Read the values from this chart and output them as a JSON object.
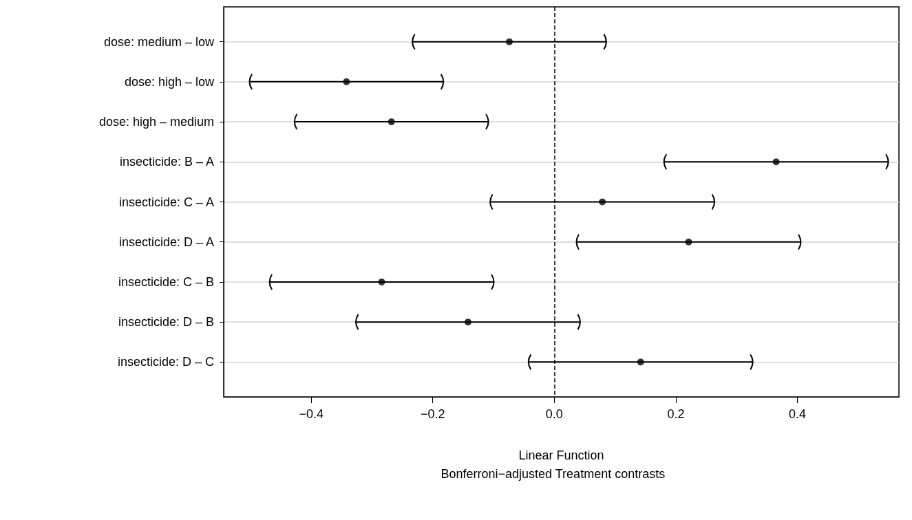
{
  "chart_data": {
    "type": "scatter",
    "orientation": "horizontal",
    "xlabel": "Linear Function",
    "annotations": [
      "Bonferroni−adjusted Treatment contrasts"
    ],
    "categories": [
      "dose: medium – low",
      "dose: high – low",
      "dose: high – medium",
      "insecticide: B – A",
      "insecticide: C – A",
      "insecticide: D – A",
      "insecticide: C – B",
      "insecticide: D – B",
      "insecticide: D – C"
    ],
    "series": [
      {
        "color": "#000000",
        "values": [
          -0.074,
          -0.342,
          -0.268,
          0.365,
          0.079,
          0.221,
          -0.284,
          -0.142,
          0.142
        ],
        "errors": [
          0.159,
          0.159,
          0.159,
          0.184,
          0.184,
          0.184,
          0.184,
          0.184,
          0.184
        ]
      }
    ],
    "xlim": [
      -0.544,
      0.567
    ],
    "xticks": [
      {
        "value": -0.4,
        "label": "−0.4"
      },
      {
        "value": -0.2,
        "label": "−0.2"
      },
      {
        "value": 0,
        "label": "0.0"
      },
      {
        "value": 0.2,
        "label": "0.2"
      },
      {
        "value": 0.4,
        "label": "0.4"
      }
    ],
    "ref_lines": [
      {
        "axis": "x",
        "value": 0,
        "label": null,
        "color": "#000000",
        "line_style": "dashed"
      }
    ],
    "grid": "y",
    "marker": "circle"
  }
}
